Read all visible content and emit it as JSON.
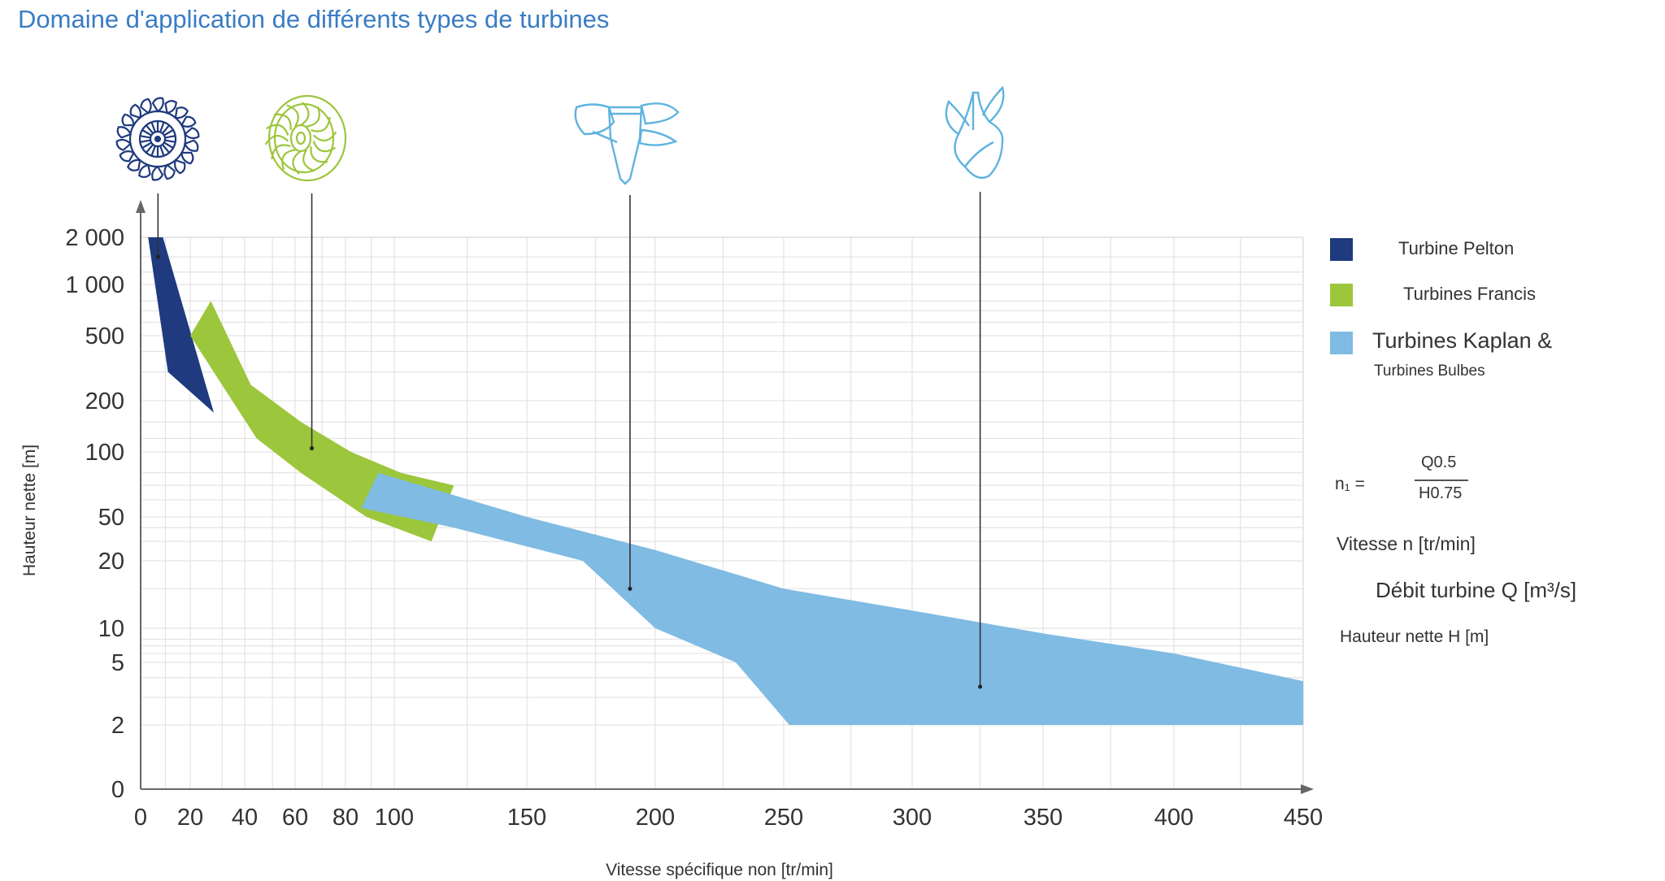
{
  "header": {
    "title": "Domaine d'application de différents types de turbines"
  },
  "legend": {
    "pelton": {
      "label": "Turbine Pelton",
      "color": "#1f3a7e"
    },
    "francis": {
      "label": "Turbines Francis",
      "color": "#9cc63c"
    },
    "kaplan": {
      "label_line1": "Turbines Kaplan &",
      "label_line2": "Turbines Bulbes",
      "color": "#7fbbe3"
    }
  },
  "formula": {
    "lhs": "n₁ =",
    "numerator": "Q0.5",
    "denominator": "H0.75",
    "speed_def": "Vitesse n [tr/min]",
    "flow_def": "Débit turbine Q [m³/s]",
    "head_def": "Hauteur nette H [m]"
  },
  "icons": [
    "pelton-runner-icon",
    "francis-runner-icon",
    "kaplan-runner-icon",
    "bulb-runner-icon"
  ],
  "chart_data": {
    "type": "area",
    "xlabel": "Vitesse spécifique non [tr/min]",
    "ylabel": "Hauteur nette [m]",
    "x_ticks": [
      0,
      20,
      40,
      60,
      80,
      100,
      150,
      200,
      250,
      300,
      350,
      400,
      450
    ],
    "x_tick_labels": [
      "0",
      "20",
      "40",
      "60",
      "80",
      "100",
      "150",
      "200",
      "250",
      "300",
      "350",
      "400",
      "450"
    ],
    "xlim": [
      0,
      450
    ],
    "y_ticks": [
      0,
      2,
      5,
      10,
      20,
      50,
      100,
      200,
      500,
      1000,
      2000
    ],
    "y_tick_labels": [
      "0",
      "2",
      "5",
      "10",
      "20",
      "50",
      "100",
      "200",
      "500",
      "1 000",
      "2 000"
    ],
    "ylim": [
      0,
      2000
    ],
    "y_scale": "nonlinear (tick positions as printed)",
    "grid": true,
    "legend_position": "right",
    "series": [
      {
        "name": "Turbine Pelton",
        "color": "#1f3a7e",
        "polygon": [
          [
            3,
            2000
          ],
          [
            9,
            2000
          ],
          [
            27,
            170
          ],
          [
            11,
            300
          ]
        ],
        "marker": [
          7,
          1500
        ]
      },
      {
        "name": "Turbines Francis",
        "color": "#9cc63c",
        "polygon": [
          [
            26,
            800
          ],
          [
            42,
            250
          ],
          [
            62,
            150
          ],
          [
            82,
            100
          ],
          [
            102,
            80
          ],
          [
            120,
            70
          ],
          [
            112,
            30
          ],
          [
            88,
            50
          ],
          [
            62,
            80
          ],
          [
            44,
            120
          ],
          [
            20,
            500
          ]
        ],
        "marker": [
          66,
          105
        ]
      },
      {
        "name": "Turbines Kaplan & Turbines Bulbes",
        "color": "#7fbbe3",
        "polygon": [
          [
            93,
            80
          ],
          [
            150,
            50
          ],
          [
            200,
            25
          ],
          [
            250,
            15
          ],
          [
            300,
            12
          ],
          [
            350,
            9
          ],
          [
            400,
            6
          ],
          [
            450,
            3.8
          ],
          [
            450,
            2
          ],
          [
            252,
            2
          ],
          [
            230,
            5
          ],
          [
            200,
            10
          ],
          [
            170,
            20
          ],
          [
            120,
            40
          ],
          [
            86,
            55
          ]
        ],
        "marker": [
          189,
          15
        ]
      }
    ],
    "callouts": [
      {
        "icon": "pelton-runner-icon",
        "x": 7,
        "y_end": 1500
      },
      {
        "icon": "francis-runner-icon",
        "x": 66,
        "y_end": 105
      },
      {
        "icon": "kaplan-runner-icon",
        "x": 189,
        "y_end": 15
      },
      {
        "icon": "bulb-runner-icon",
        "x": 325,
        "y_end": 3.5
      }
    ]
  }
}
